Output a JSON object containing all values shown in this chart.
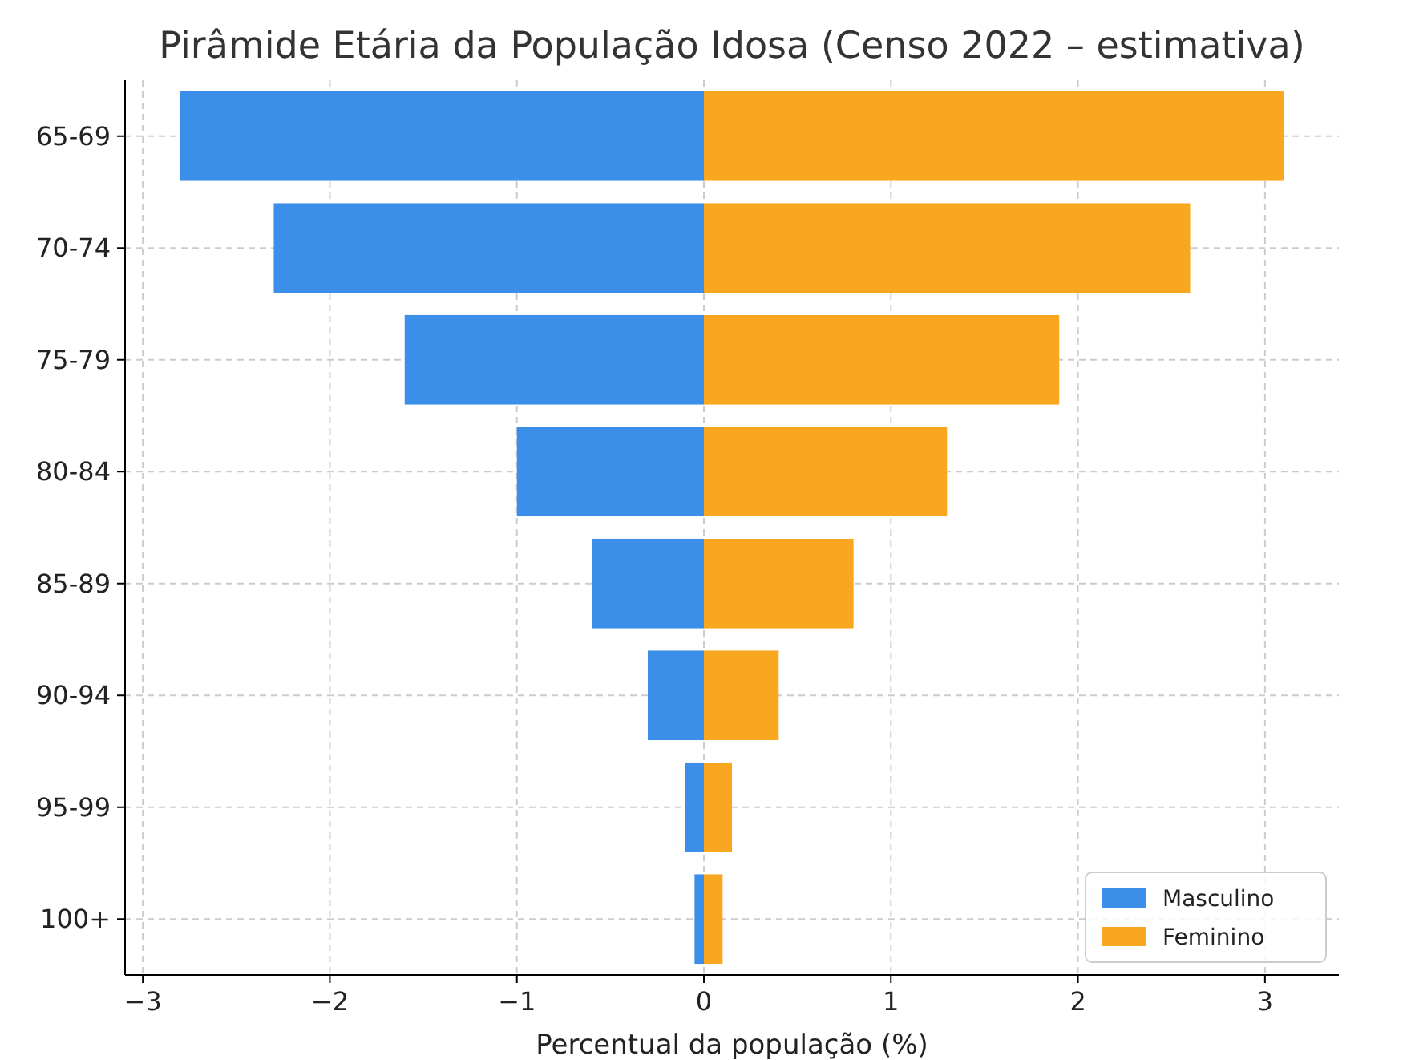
{
  "chart_data": {
    "type": "bar",
    "orientation": "horizontal",
    "title": "Pirâmide Etária da População Idosa (Censo 2022 – estimativa)",
    "xlabel": "Percentual da população (%)",
    "categories": [
      "65-69",
      "70-74",
      "75-79",
      "80-84",
      "85-89",
      "90-94",
      "95-99",
      "100+"
    ],
    "series": [
      {
        "name": "Masculino",
        "color": "#3b8fe8",
        "values": [
          -2.8,
          -2.3,
          -1.6,
          -1.0,
          -0.6,
          -0.3,
          -0.1,
          -0.05
        ]
      },
      {
        "name": "Feminino",
        "color": "#f9a620",
        "values": [
          3.1,
          2.6,
          1.9,
          1.3,
          0.8,
          0.4,
          0.15,
          0.1
        ]
      }
    ],
    "xlim": [
      -3.095,
      3.395
    ],
    "xticks": [
      {
        "value": -3,
        "label": "−3"
      },
      {
        "value": -2,
        "label": "−2"
      },
      {
        "value": -1,
        "label": "−1"
      },
      0,
      1,
      2,
      3
    ],
    "grid": true,
    "legend": "bottom right",
    "stacked": true
  }
}
